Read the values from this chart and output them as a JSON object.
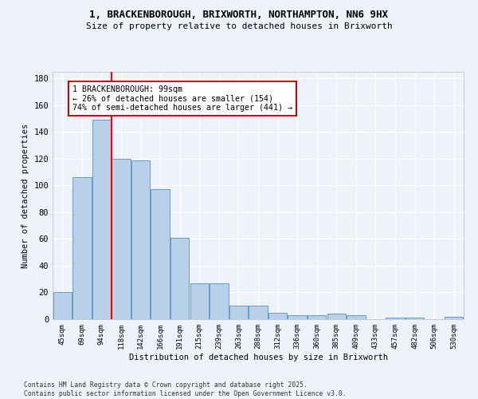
{
  "title_line1": "1, BRACKENBOROUGH, BRIXWORTH, NORTHAMPTON, NN6 9HX",
  "title_line2": "Size of property relative to detached houses in Brixworth",
  "xlabel": "Distribution of detached houses by size in Brixworth",
  "ylabel": "Number of detached properties",
  "categories": [
    "45sqm",
    "69sqm",
    "94sqm",
    "118sqm",
    "142sqm",
    "166sqm",
    "191sqm",
    "215sqm",
    "239sqm",
    "263sqm",
    "288sqm",
    "312sqm",
    "336sqm",
    "360sqm",
    "385sqm",
    "409sqm",
    "433sqm",
    "457sqm",
    "482sqm",
    "506sqm",
    "530sqm"
  ],
  "values": [
    20,
    106,
    149,
    120,
    119,
    97,
    61,
    27,
    27,
    10,
    10,
    5,
    3,
    3,
    4,
    3,
    0,
    1,
    1,
    0,
    2
  ],
  "bar_color": "#b8d0e8",
  "bar_edge_color": "#6699cc",
  "red_line_x": 2.5,
  "annotation_text": "1 BRACKENBOROUGH: 99sqm\n← 26% of detached houses are smaller (154)\n74% of semi-detached houses are larger (441) →",
  "annotation_box_color": "#ffffff",
  "annotation_box_edge_color": "#cc0000",
  "ylim": [
    0,
    185
  ],
  "yticks": [
    0,
    20,
    40,
    60,
    80,
    100,
    120,
    140,
    160,
    180
  ],
  "background_color": "#eef2fb",
  "grid_color": "#ffffff",
  "footer": "Contains HM Land Registry data © Crown copyright and database right 2025.\nContains public sector information licensed under the Open Government Licence v3.0."
}
